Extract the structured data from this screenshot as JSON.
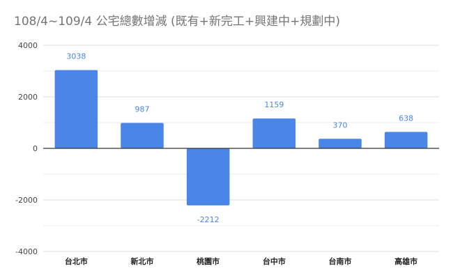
{
  "chart_data": {
    "type": "bar",
    "title": "108/4~109/4 公宅總數增減 (既有+新完工+興建中+規劃中)",
    "xlabel": "",
    "ylabel": "",
    "categories": [
      "台北市",
      "新北市",
      "桃園市",
      "台中市",
      "台南市",
      "高雄市"
    ],
    "values": [
      3038,
      987,
      -2212,
      1159,
      370,
      638
    ],
    "ylim": [
      -4000,
      4000
    ],
    "yticks": [
      4000,
      2000,
      0,
      -2000,
      -4000
    ],
    "grid": true,
    "legend": "none",
    "colors": {
      "bar": "#4a86e8",
      "label": "#4a86e8",
      "grid": "#dddddd",
      "axis": "#333333"
    }
  }
}
